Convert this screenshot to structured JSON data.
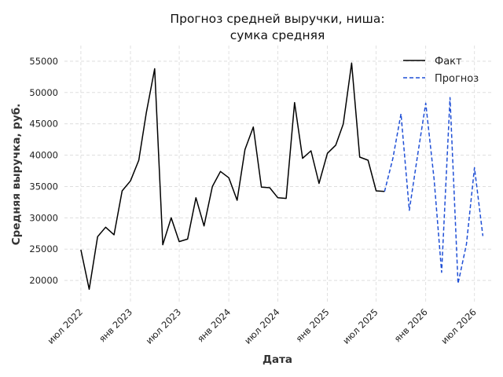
{
  "chart_data": {
    "type": "line",
    "title_lines": [
      "Прогноз средней выручки, ниша:",
      "сумка средняя"
    ],
    "xlabel": "Дата",
    "ylabel": "Средняя выручка, руб.",
    "xlim": [
      "2022-05-01",
      "2026-09-01"
    ],
    "ylim": [
      16500,
      57500
    ],
    "y_ticks": [
      20000,
      25000,
      30000,
      35000,
      40000,
      45000,
      50000,
      55000
    ],
    "x_ticks": [
      {
        "date": "2022-07-01",
        "label": "июл 2022"
      },
      {
        "date": "2023-01-01",
        "label": "янв 2023"
      },
      {
        "date": "2023-07-01",
        "label": "июл 2023"
      },
      {
        "date": "2024-01-01",
        "label": "янв 2024"
      },
      {
        "date": "2024-07-01",
        "label": "июл 2024"
      },
      {
        "date": "2025-01-01",
        "label": "янв 2025"
      },
      {
        "date": "2025-07-01",
        "label": "июл 2025"
      },
      {
        "date": "2026-01-01",
        "label": "янв 2026"
      },
      {
        "date": "2026-07-01",
        "label": "июл 2026"
      }
    ],
    "grid": true,
    "legend_position": "top-right",
    "series": [
      {
        "name": "Факт",
        "color": "#000000",
        "style": "solid",
        "x": [
          "2022-07-01",
          "2022-08-01",
          "2022-09-01",
          "2022-10-01",
          "2022-11-01",
          "2022-12-01",
          "2023-01-01",
          "2023-02-01",
          "2023-03-01",
          "2023-04-01",
          "2023-05-01",
          "2023-06-01",
          "2023-07-01",
          "2023-08-01",
          "2023-09-01",
          "2023-10-01",
          "2023-11-01",
          "2023-12-01",
          "2024-01-01",
          "2024-02-01",
          "2024-03-01",
          "2024-04-01",
          "2024-05-01",
          "2024-06-01",
          "2024-07-01",
          "2024-08-01",
          "2024-09-01",
          "2024-10-01",
          "2024-11-01",
          "2024-12-01",
          "2025-01-01",
          "2025-02-01",
          "2025-03-01",
          "2025-04-01",
          "2025-05-01",
          "2025-06-01",
          "2025-07-01",
          "2025-08-01"
        ],
        "y": [
          24900,
          18600,
          27000,
          28500,
          27300,
          34300,
          35900,
          39200,
          46800,
          53800,
          25700,
          30000,
          26200,
          26600,
          33200,
          28700,
          35000,
          37400,
          36400,
          32800,
          40900,
          44500,
          34900,
          34800,
          33200,
          33100,
          48400,
          39500,
          40700,
          35500,
          40300,
          41600,
          45000,
          54700,
          39700,
          39200,
          34300,
          34200
        ]
      },
      {
        "name": "Прогноз",
        "color": "#1f4fd6",
        "style": "dashed",
        "x": [
          "2025-08-01",
          "2025-09-01",
          "2025-10-01",
          "2025-11-01",
          "2025-12-01",
          "2026-01-01",
          "2026-02-01",
          "2026-03-01",
          "2026-04-01",
          "2026-05-01",
          "2026-06-01",
          "2026-07-01",
          "2026-08-01"
        ],
        "y": [
          34200,
          39500,
          46600,
          31200,
          39800,
          48300,
          36200,
          21300,
          49200,
          19500,
          25800,
          38000,
          27100
        ]
      }
    ]
  }
}
